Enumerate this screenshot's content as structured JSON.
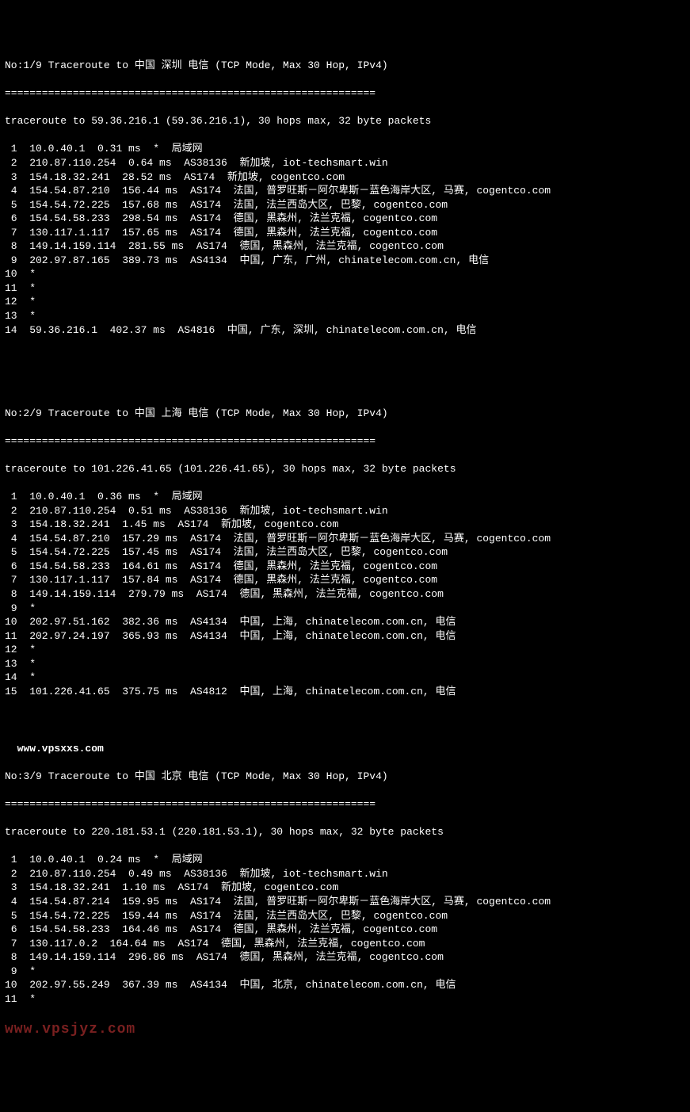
{
  "route1": {
    "header": "No:1/9 Traceroute to 中国 深圳 电信 (TCP Mode, Max 30 Hop, IPv4)",
    "divider": "============================================================",
    "summary": "traceroute to 59.36.216.1 (59.36.216.1), 30 hops max, 32 byte packets",
    "hops": [
      " 1  10.0.40.1  0.31 ms  *  局域网",
      " 2  210.87.110.254  0.64 ms  AS38136  新加坡, iot-techsmart.win",
      " 3  154.18.32.241  28.52 ms  AS174  新加坡, cogentco.com",
      " 4  154.54.87.210  156.44 ms  AS174  法国, 普罗旺斯－阿尔卑斯－蓝色海岸大区, 马赛, cogentco.com",
      " 5  154.54.72.225  157.68 ms  AS174  法国, 法兰西岛大区, 巴黎, cogentco.com",
      " 6  154.54.58.233  298.54 ms  AS174  德国, 黑森州, 法兰克福, cogentco.com",
      " 7  130.117.1.117  157.65 ms  AS174  德国, 黑森州, 法兰克福, cogentco.com",
      " 8  149.14.159.114  281.55 ms  AS174  德国, 黑森州, 法兰克福, cogentco.com",
      " 9  202.97.87.165  389.73 ms  AS4134  中国, 广东, 广州, chinatelecom.com.cn, 电信",
      "10  *",
      "11  *",
      "12  *",
      "13  *",
      "14  59.36.216.1  402.37 ms  AS4816  中国, 广东, 深圳, chinatelecom.com.cn, 电信"
    ]
  },
  "route2": {
    "header": "No:2/9 Traceroute to 中国 上海 电信 (TCP Mode, Max 30 Hop, IPv4)",
    "divider": "============================================================",
    "summary": "traceroute to 101.226.41.65 (101.226.41.65), 30 hops max, 32 byte packets",
    "hops": [
      " 1  10.0.40.1  0.36 ms  *  局域网",
      " 2  210.87.110.254  0.51 ms  AS38136  新加坡, iot-techsmart.win",
      " 3  154.18.32.241  1.45 ms  AS174  新加坡, cogentco.com",
      " 4  154.54.87.210  157.29 ms  AS174  法国, 普罗旺斯－阿尔卑斯－蓝色海岸大区, 马赛, cogentco.com",
      " 5  154.54.72.225  157.45 ms  AS174  法国, 法兰西岛大区, 巴黎, cogentco.com",
      " 6  154.54.58.233  164.61 ms  AS174  德国, 黑森州, 法兰克福, cogentco.com",
      " 7  130.117.1.117  157.84 ms  AS174  德国, 黑森州, 法兰克福, cogentco.com",
      " 8  149.14.159.114  279.79 ms  AS174  德国, 黑森州, 法兰克福, cogentco.com",
      " 9  *",
      "10  202.97.51.162  382.36 ms  AS4134  中国, 上海, chinatelecom.com.cn, 电信",
      "11  202.97.24.197  365.93 ms  AS4134  中国, 上海, chinatelecom.com.cn, 电信",
      "12  *",
      "13  *",
      "14  *",
      "15  101.226.41.65  375.75 ms  AS4812  中国, 上海, chinatelecom.com.cn, 电信"
    ]
  },
  "watermark1": "  www.vpsxxs.com",
  "route3": {
    "header": "No:3/9 Traceroute to 中国 北京 电信 (TCP Mode, Max 30 Hop, IPv4)",
    "divider": "============================================================",
    "summary": "traceroute to 220.181.53.1 (220.181.53.1), 30 hops max, 32 byte packets",
    "hops": [
      " 1  10.0.40.1  0.24 ms  *  局域网",
      " 2  210.87.110.254  0.49 ms  AS38136  新加坡, iot-techsmart.win",
      " 3  154.18.32.241  1.10 ms  AS174  新加坡, cogentco.com",
      " 4  154.54.87.214  159.95 ms  AS174  法国, 普罗旺斯－阿尔卑斯－蓝色海岸大区, 马赛, cogentco.com",
      " 5  154.54.72.225  159.44 ms  AS174  法国, 法兰西岛大区, 巴黎, cogentco.com",
      " 6  154.54.58.233  164.46 ms  AS174  德国, 黑森州, 法兰克福, cogentco.com",
      " 7  130.117.0.2  164.64 ms  AS174  德国, 黑森州, 法兰克福, cogentco.com",
      " 8  149.14.159.114  296.86 ms  AS174  德国, 黑森州, 法兰克福, cogentco.com",
      " 9  *",
      "10  202.97.55.249  367.39 ms  AS4134  中国, 北京, chinatelecom.com.cn, 电信",
      "11  *"
    ]
  },
  "watermark2": "www.vpsjyz.com"
}
